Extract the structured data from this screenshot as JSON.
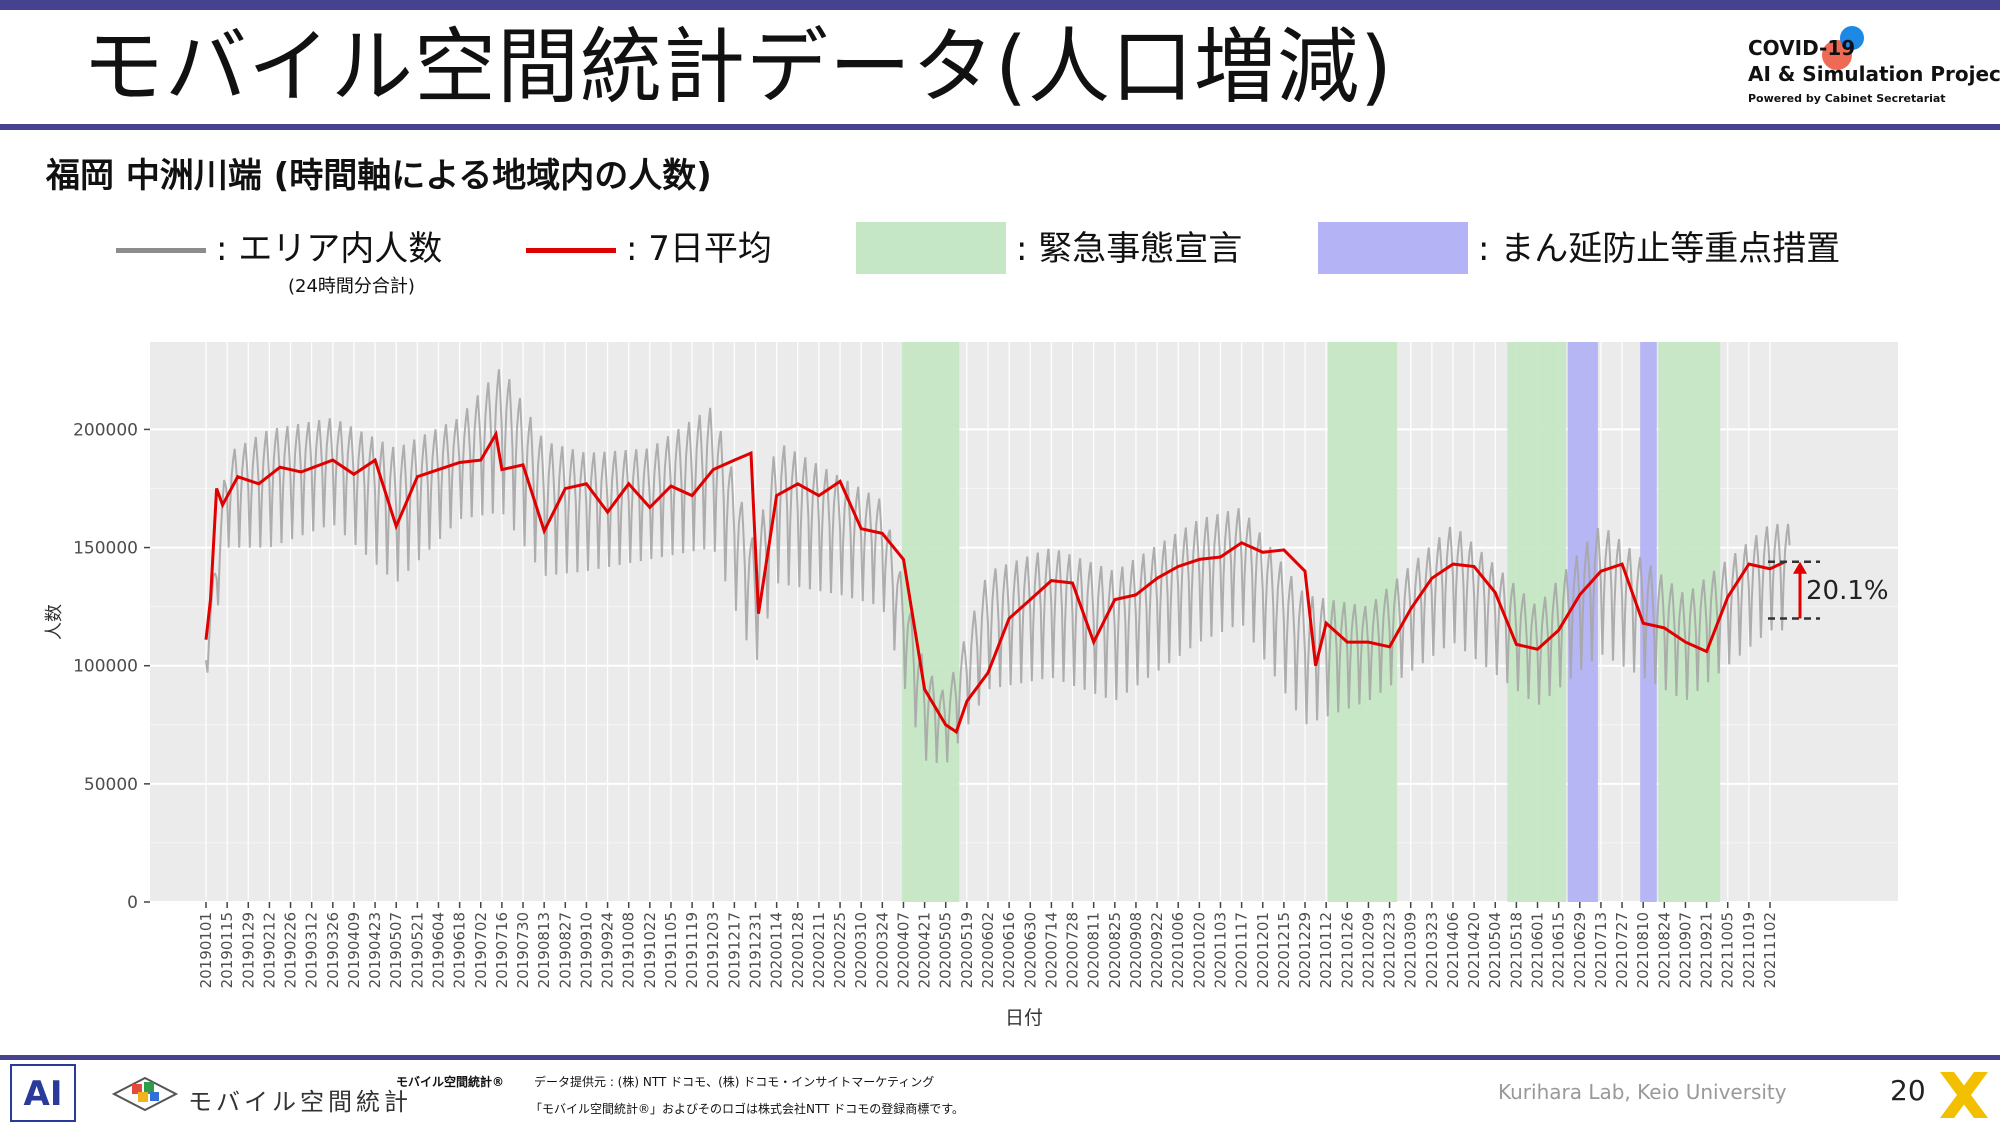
{
  "header": {
    "title": "モバイル空間統計データ(人口増減)",
    "logo_line1": "COVID-19",
    "logo_line2": "AI & Simulation Project",
    "logo_line3": "Powered by Cabinet Secretariat"
  },
  "subtitle": "福岡 中洲川端 (時間軸による地域内の人数)",
  "legend": {
    "raw": ": エリア内人数",
    "raw_sub": "(24時間分合計)",
    "avg": ": 7日平均",
    "emergency": ": 緊急事態宣言",
    "semi": ": まん延防止等重点措置"
  },
  "colors": {
    "raw": "#a6a6a6",
    "avg": "#e00000",
    "emergency": "#c5e7c5",
    "semi": "#b3b3f5",
    "panel": "#ebebeb",
    "accent": "#46428f"
  },
  "chart_data": {
    "type": "line",
    "title": "",
    "xlabel": "日付",
    "ylabel": "人数",
    "ylim": [
      0,
      237000
    ],
    "yticks": [
      0,
      50000,
      100000,
      150000,
      200000
    ],
    "ytick_labels": [
      "0",
      "50000",
      "100000",
      "150000",
      "200000"
    ],
    "xtick_labels": [
      "20190101",
      "20190115",
      "20190129",
      "20190212",
      "20190226",
      "20190312",
      "20190326",
      "20190409",
      "20190423",
      "20190507",
      "20190521",
      "20190604",
      "20190618",
      "20190702",
      "20190716",
      "20190730",
      "20190813",
      "20190827",
      "20190910",
      "20190924",
      "20191008",
      "20191022",
      "20191105",
      "20191119",
      "20191203",
      "20191217",
      "20191231",
      "20200114",
      "20200128",
      "20200211",
      "20200225",
      "20200310",
      "20200324",
      "20200407",
      "20200421",
      "20200505",
      "20200519",
      "20200602",
      "20200616",
      "20200630",
      "20200714",
      "20200728",
      "20200811",
      "20200825",
      "20200908",
      "20200922",
      "20201006",
      "20201020",
      "20201103",
      "20201117",
      "20201201",
      "20201215",
      "20201229",
      "20210112",
      "20210126",
      "20210209",
      "20210223",
      "20210309",
      "20210323",
      "20210406",
      "20210420",
      "20210504",
      "20210518",
      "20210601",
      "20210615",
      "20210629",
      "20210713",
      "20210727",
      "20210810",
      "20210824",
      "20210907",
      "20210921",
      "20211005",
      "20211019",
      "20211102"
    ],
    "x_range": [
      "20190101",
      "20211115"
    ],
    "shaded_periods": [
      {
        "type": "emergency",
        "start": "20200406",
        "end": "20200514"
      },
      {
        "type": "emergency",
        "start": "20210113",
        "end": "20210228"
      },
      {
        "type": "emergency",
        "start": "20210512",
        "end": "20210620"
      },
      {
        "type": "semi",
        "start": "20210621",
        "end": "20210711"
      },
      {
        "type": "semi",
        "start": "20210808",
        "end": "20210819"
      },
      {
        "type": "emergency",
        "start": "20210820",
        "end": "20210930"
      }
    ],
    "series": [
      {
        "name": "エリア内人数",
        "daily_min_max": [
          {
            "x": "20190101",
            "min": 93000,
            "max": 110000
          },
          {
            "x": "20190115",
            "min": 150000,
            "max": 190000
          },
          {
            "x": "20190212",
            "min": 150000,
            "max": 200000
          },
          {
            "x": "20190326",
            "min": 160000,
            "max": 205000
          },
          {
            "x": "20190507",
            "min": 135000,
            "max": 192000
          },
          {
            "x": "20190618",
            "min": 162000,
            "max": 205000
          },
          {
            "x": "20190716",
            "min": 165000,
            "max": 227000
          },
          {
            "x": "20190813",
            "min": 138000,
            "max": 195000
          },
          {
            "x": "20190910",
            "min": 140000,
            "max": 190000
          },
          {
            "x": "20191022",
            "min": 145000,
            "max": 192000
          },
          {
            "x": "20191203",
            "min": 150000,
            "max": 210000
          },
          {
            "x": "20191231",
            "min": 100000,
            "max": 150000
          },
          {
            "x": "20200114",
            "min": 135000,
            "max": 195000
          },
          {
            "x": "20200225",
            "min": 130000,
            "max": 180000
          },
          {
            "x": "20200324",
            "min": 125000,
            "max": 170000
          },
          {
            "x": "20200421",
            "min": 60000,
            "max": 100000
          },
          {
            "x": "20200505",
            "min": 58000,
            "max": 88000
          },
          {
            "x": "20200602",
            "min": 90000,
            "max": 140000
          },
          {
            "x": "20200714",
            "min": 95000,
            "max": 150000
          },
          {
            "x": "20200825",
            "min": 85000,
            "max": 140000
          },
          {
            "x": "20201020",
            "min": 110000,
            "max": 162000
          },
          {
            "x": "20201117",
            "min": 118000,
            "max": 167000
          },
          {
            "x": "20201229",
            "min": 75000,
            "max": 130000
          },
          {
            "x": "20210209",
            "min": 85000,
            "max": 125000
          },
          {
            "x": "20210406",
            "min": 110000,
            "max": 160000
          },
          {
            "x": "20210601",
            "min": 83000,
            "max": 125000
          },
          {
            "x": "20210713",
            "min": 105000,
            "max": 160000
          },
          {
            "x": "20210907",
            "min": 85000,
            "max": 130000
          },
          {
            "x": "20211102",
            "min": 115000,
            "max": 160000
          }
        ]
      },
      {
        "name": "7日平均",
        "points": [
          {
            "x": "20190101",
            "y": 111000
          },
          {
            "x": "20190104",
            "y": 128000
          },
          {
            "x": "20190108",
            "y": 175000
          },
          {
            "x": "20190112",
            "y": 168000
          },
          {
            "x": "20190122",
            "y": 180000
          },
          {
            "x": "20190205",
            "y": 177000
          },
          {
            "x": "20190219",
            "y": 184000
          },
          {
            "x": "20190305",
            "y": 182000
          },
          {
            "x": "20190326",
            "y": 187000
          },
          {
            "x": "20190409",
            "y": 181000
          },
          {
            "x": "20190423",
            "y": 187000
          },
          {
            "x": "20190507",
            "y": 159000
          },
          {
            "x": "20190521",
            "y": 180000
          },
          {
            "x": "20190604",
            "y": 183000
          },
          {
            "x": "20190618",
            "y": 186000
          },
          {
            "x": "20190702",
            "y": 187000
          },
          {
            "x": "20190712",
            "y": 198000
          },
          {
            "x": "20190716",
            "y": 183000
          },
          {
            "x": "20190730",
            "y": 185000
          },
          {
            "x": "20190813",
            "y": 157000
          },
          {
            "x": "20190827",
            "y": 175000
          },
          {
            "x": "20190910",
            "y": 177000
          },
          {
            "x": "20190924",
            "y": 165000
          },
          {
            "x": "20191008",
            "y": 177000
          },
          {
            "x": "20191022",
            "y": 167000
          },
          {
            "x": "20191105",
            "y": 176000
          },
          {
            "x": "20191119",
            "y": 172000
          },
          {
            "x": "20191203",
            "y": 183000
          },
          {
            "x": "20191217",
            "y": 187000
          },
          {
            "x": "20191228",
            "y": 190000
          },
          {
            "x": "20200102",
            "y": 122000
          },
          {
            "x": "20200114",
            "y": 172000
          },
          {
            "x": "20200128",
            "y": 177000
          },
          {
            "x": "20200211",
            "y": 172000
          },
          {
            "x": "20200225",
            "y": 178000
          },
          {
            "x": "20200310",
            "y": 158000
          },
          {
            "x": "20200324",
            "y": 156000
          },
          {
            "x": "20200407",
            "y": 145000
          },
          {
            "x": "20200421",
            "y": 90000
          },
          {
            "x": "20200505",
            "y": 75000
          },
          {
            "x": "20200512",
            "y": 72000
          },
          {
            "x": "20200519",
            "y": 85000
          },
          {
            "x": "20200602",
            "y": 97000
          },
          {
            "x": "20200616",
            "y": 120000
          },
          {
            "x": "20200630",
            "y": 128000
          },
          {
            "x": "20200714",
            "y": 136000
          },
          {
            "x": "20200728",
            "y": 135000
          },
          {
            "x": "20200811",
            "y": 110000
          },
          {
            "x": "20200825",
            "y": 128000
          },
          {
            "x": "20200908",
            "y": 130000
          },
          {
            "x": "20200922",
            "y": 137000
          },
          {
            "x": "20201006",
            "y": 142000
          },
          {
            "x": "20201020",
            "y": 145000
          },
          {
            "x": "20201103",
            "y": 146000
          },
          {
            "x": "20201117",
            "y": 152000
          },
          {
            "x": "20201201",
            "y": 148000
          },
          {
            "x": "20201215",
            "y": 149000
          },
          {
            "x": "20201229",
            "y": 140000
          },
          {
            "x": "20210105",
            "y": 100000
          },
          {
            "x": "20210112",
            "y": 118000
          },
          {
            "x": "20210126",
            "y": 110000
          },
          {
            "x": "20210209",
            "y": 110000
          },
          {
            "x": "20210223",
            "y": 108000
          },
          {
            "x": "20210309",
            "y": 124000
          },
          {
            "x": "20210323",
            "y": 137000
          },
          {
            "x": "20210406",
            "y": 143000
          },
          {
            "x": "20210420",
            "y": 142000
          },
          {
            "x": "20210504",
            "y": 131000
          },
          {
            "x": "20210518",
            "y": 109000
          },
          {
            "x": "20210601",
            "y": 107000
          },
          {
            "x": "20210615",
            "y": 115000
          },
          {
            "x": "20210629",
            "y": 130000
          },
          {
            "x": "20210713",
            "y": 140000
          },
          {
            "x": "20210727",
            "y": 143000
          },
          {
            "x": "20210810",
            "y": 118000
          },
          {
            "x": "20210824",
            "y": 116000
          },
          {
            "x": "20210907",
            "y": 110000
          },
          {
            "x": "20210921",
            "y": 106000
          },
          {
            "x": "20211005",
            "y": 129000
          },
          {
            "x": "20211019",
            "y": 143000
          },
          {
            "x": "20211102",
            "y": 141000
          },
          {
            "x": "20211112",
            "y": 144000
          }
        ]
      }
    ],
    "annotation": {
      "label": "20.1%",
      "from_y": 120000,
      "to_y": 144000
    }
  },
  "footer": {
    "ai_mark": "AI",
    "brand": "モバイル空間統計",
    "registered": "モバイル空間統計®",
    "source": "データ提供元 : (株) NTT ドコモ、(株) ドコモ・インサイトマーケティング",
    "trademark": "「モバイル空間統計®」およびそのロゴは株式会社NTT ドコモの登録商標です。",
    "lab": "Kurihara Lab, Keio University",
    "page": "20"
  }
}
